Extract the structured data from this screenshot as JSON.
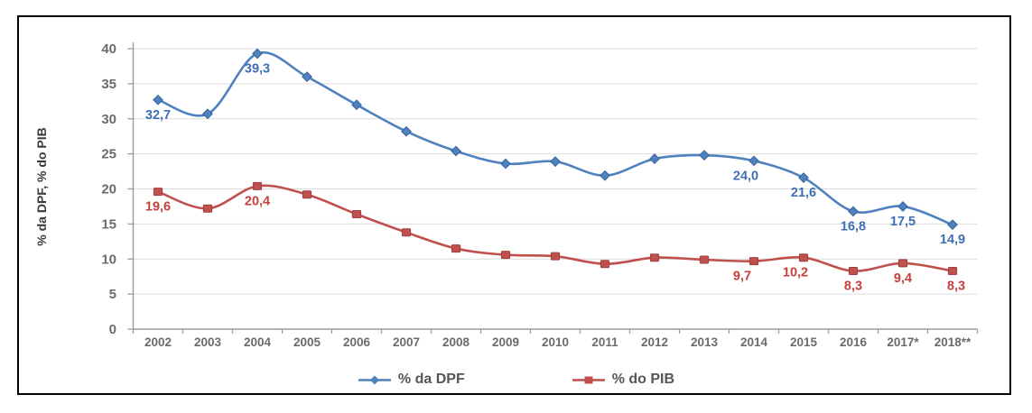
{
  "chart_data": {
    "type": "line",
    "title": "",
    "ylabel": "% da DPF, % do PIB",
    "xlabel": "",
    "ylim": [
      0,
      40
    ],
    "ytick_step": 5,
    "yticks": [
      "0",
      "5",
      "10",
      "15",
      "20",
      "25",
      "30",
      "35",
      "40"
    ],
    "grid": true,
    "smooth_lines": true,
    "legend_position": "bottom",
    "decimal_separator": ",",
    "axis_color": "#9c9c9c",
    "grid_color": "#dcdcdc",
    "tick_label_color": "#6b6b6b",
    "categories": [
      "2002",
      "2003",
      "2004",
      "2005",
      "2006",
      "2007",
      "2008",
      "2009",
      "2010",
      "2011",
      "2012",
      "2013",
      "2014",
      "2015",
      "2016",
      "2017*",
      "2018**"
    ],
    "series": [
      {
        "name": "% da DPF",
        "color": "#4f81bd",
        "marker_edge": "#38649f",
        "label_color": "#3f6eb5",
        "marker": "diamond",
        "values": [
          32.7,
          30.7,
          39.3,
          36.0,
          32.0,
          28.2,
          25.4,
          23.6,
          23.9,
          21.9,
          24.3,
          24.8,
          24.0,
          21.6,
          16.8,
          17.5,
          14.9
        ],
        "point_labels": [
          "32,7",
          null,
          "39,3",
          null,
          null,
          null,
          null,
          null,
          null,
          null,
          null,
          null,
          "24,0",
          "21,6",
          "16,8",
          "17,5",
          "14,9"
        ]
      },
      {
        "name": "% do PIB",
        "color": "#c0504d",
        "marker_edge": "#9e403d",
        "label_color": "#c4413d",
        "marker": "square",
        "values": [
          19.6,
          17.2,
          20.4,
          19.2,
          16.4,
          13.8,
          11.5,
          10.6,
          10.4,
          9.3,
          10.2,
          9.9,
          9.7,
          10.2,
          8.3,
          9.4,
          8.3
        ],
        "point_labels": [
          "19,6",
          null,
          "20,4",
          null,
          null,
          null,
          null,
          null,
          null,
          null,
          null,
          null,
          "9,7",
          "10,2",
          "8,3",
          "9,4",
          "8,3"
        ]
      }
    ]
  }
}
